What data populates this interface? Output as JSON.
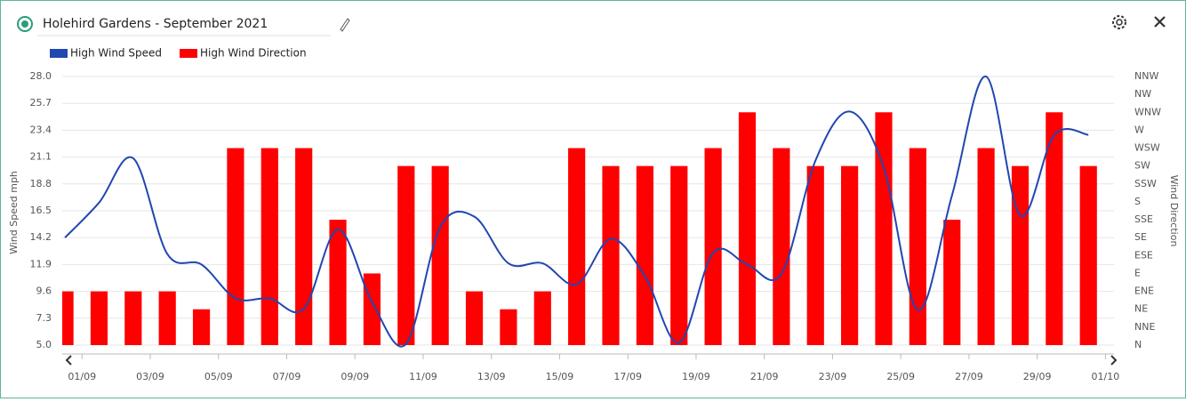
{
  "chart_data": {
    "type": "combo",
    "title": "Holehird Gardens - September 2021",
    "y_label": "Wind Speed mph",
    "y2_label": "Wind Direction",
    "grid": true,
    "x": [
      1,
      2,
      3,
      4,
      5,
      6,
      7,
      8,
      9,
      10,
      11,
      12,
      13,
      14,
      15,
      16,
      17,
      18,
      19,
      20,
      21,
      22,
      23,
      24,
      25,
      26,
      27,
      28,
      29,
      30,
      31
    ],
    "xlim": [
      0.92,
      31.75
    ],
    "xticks": [
      {
        "value": 1.5,
        "label": "01/09"
      },
      {
        "value": 3.5,
        "label": "03/09"
      },
      {
        "value": 5.5,
        "label": "05/09"
      },
      {
        "value": 7.5,
        "label": "07/09"
      },
      {
        "value": 9.5,
        "label": "09/09"
      },
      {
        "value": 11.5,
        "label": "11/09"
      },
      {
        "value": 13.5,
        "label": "13/09"
      },
      {
        "value": 15.5,
        "label": "15/09"
      },
      {
        "value": 17.5,
        "label": "17/09"
      },
      {
        "value": 19.5,
        "label": "19/09"
      },
      {
        "value": 21.5,
        "label": "21/09"
      },
      {
        "value": 23.5,
        "label": "23/09"
      },
      {
        "value": 25.5,
        "label": "25/09"
      },
      {
        "value": 27.5,
        "label": "27/09"
      },
      {
        "value": 29.5,
        "label": "29/09"
      },
      {
        "value": 31.5,
        "label": "01/10"
      }
    ],
    "ylim": [
      5,
      28
    ],
    "yticks": [
      {
        "value": 5,
        "label": "5.0"
      },
      7.3,
      9.6,
      11.9,
      14.2,
      16.5,
      18.8,
      21.1,
      23.4,
      25.7,
      {
        "value": 28,
        "label": "28.0"
      }
    ],
    "y2lim": [
      0,
      337.5
    ],
    "y2ticks": [
      {
        "value": 0,
        "label": "N"
      },
      {
        "value": 22.5,
        "label": "NNE"
      },
      {
        "value": 45,
        "label": "NE"
      },
      {
        "value": 67.5,
        "label": "ENE"
      },
      {
        "value": 90,
        "label": "E"
      },
      {
        "value": 112.5,
        "label": "ESE"
      },
      {
        "value": 135,
        "label": "SE"
      },
      {
        "value": 157.5,
        "label": "SSE"
      },
      {
        "value": 180,
        "label": "S"
      },
      {
        "value": 202.5,
        "label": "SSW"
      },
      {
        "value": 225,
        "label": "SW"
      },
      {
        "value": 247.5,
        "label": "WSW"
      },
      {
        "value": 270,
        "label": "W"
      },
      {
        "value": 292.5,
        "label": "WNW"
      },
      {
        "value": 315,
        "label": "NW"
      },
      {
        "value": 337.5,
        "label": "NNW"
      }
    ],
    "series": [
      {
        "name": "High Wind Speed",
        "type": "line",
        "color": "#2147b0",
        "values": [
          14.2,
          17.2,
          21.0,
          12.8,
          11.9,
          9.0,
          9.0,
          8.1,
          14.9,
          8.7,
          5.1,
          15.1,
          16.0,
          12.0,
          12.0,
          10.2,
          14.1,
          10.9,
          5.2,
          12.9,
          11.9,
          11.1,
          20.8,
          25.0,
          20.2,
          8.0,
          17.8,
          28.0,
          16.1,
          23.0,
          23.0
        ]
      },
      {
        "name": "High Wind Direction",
        "type": "bar",
        "axis": "y2",
        "color": "#ff0000",
        "values": [
          67.5,
          67.5,
          67.5,
          67.5,
          45,
          247.5,
          247.5,
          247.5,
          157.5,
          90,
          225,
          225,
          67.5,
          45,
          67.5,
          247.5,
          225,
          225,
          225,
          247.5,
          292.5,
          247.5,
          225,
          225,
          292.5,
          247.5,
          157.5,
          247.5,
          225,
          292.5,
          225
        ]
      }
    ]
  }
}
